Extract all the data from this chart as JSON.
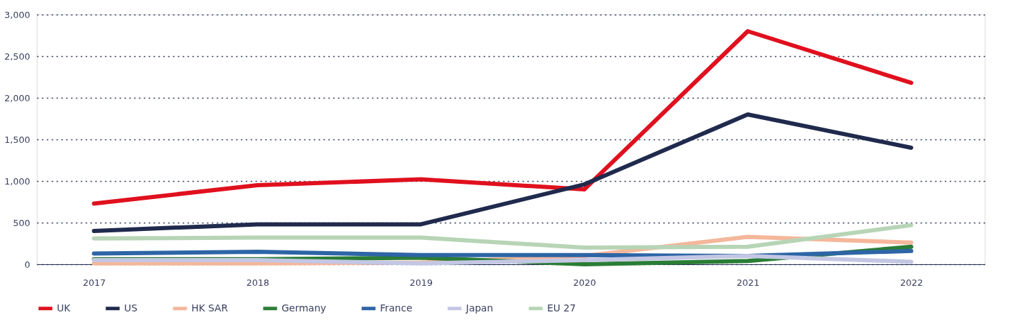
{
  "chart_data": {
    "type": "line",
    "categories": [
      "2017",
      "2018",
      "2019",
      "2020",
      "2021",
      "2022"
    ],
    "series": [
      {
        "name": "UK",
        "color": "#e0101e",
        "values": [
          730,
          950,
          1020,
          900,
          2800,
          2180
        ]
      },
      {
        "name": "US",
        "color": "#1f2a4d",
        "values": [
          400,
          480,
          480,
          960,
          1800,
          1400
        ]
      },
      {
        "name": "HK SAR",
        "color": "#f4b79b",
        "values": [
          10,
          10,
          20,
          100,
          330,
          260
        ]
      },
      {
        "name": "Germany",
        "color": "#2a7d36",
        "values": [
          60,
          60,
          80,
          0,
          40,
          210
        ]
      },
      {
        "name": "France",
        "color": "#2d65a6",
        "values": [
          130,
          150,
          110,
          110,
          100,
          160
        ]
      },
      {
        "name": "Japan",
        "color": "#c3c7e4",
        "values": [
          50,
          50,
          10,
          50,
          100,
          30
        ]
      },
      {
        "name": "EU 27",
        "color": "#b7d5b6",
        "values": [
          310,
          320,
          320,
          200,
          210,
          470
        ]
      }
    ],
    "ylim": [
      0,
      3000
    ],
    "yticks": [
      0,
      500,
      {
        "value": 1000,
        "label": "1,000"
      },
      {
        "value": 1500,
        "label": "1,500"
      },
      {
        "value": 2000,
        "label": "2,000"
      },
      {
        "value": 2500,
        "label": "2,500"
      },
      {
        "value": 3000,
        "label": "3,000"
      }
    ],
    "grid": "y",
    "legend": "bottom",
    "marker": "none",
    "line_style": "solid"
  }
}
